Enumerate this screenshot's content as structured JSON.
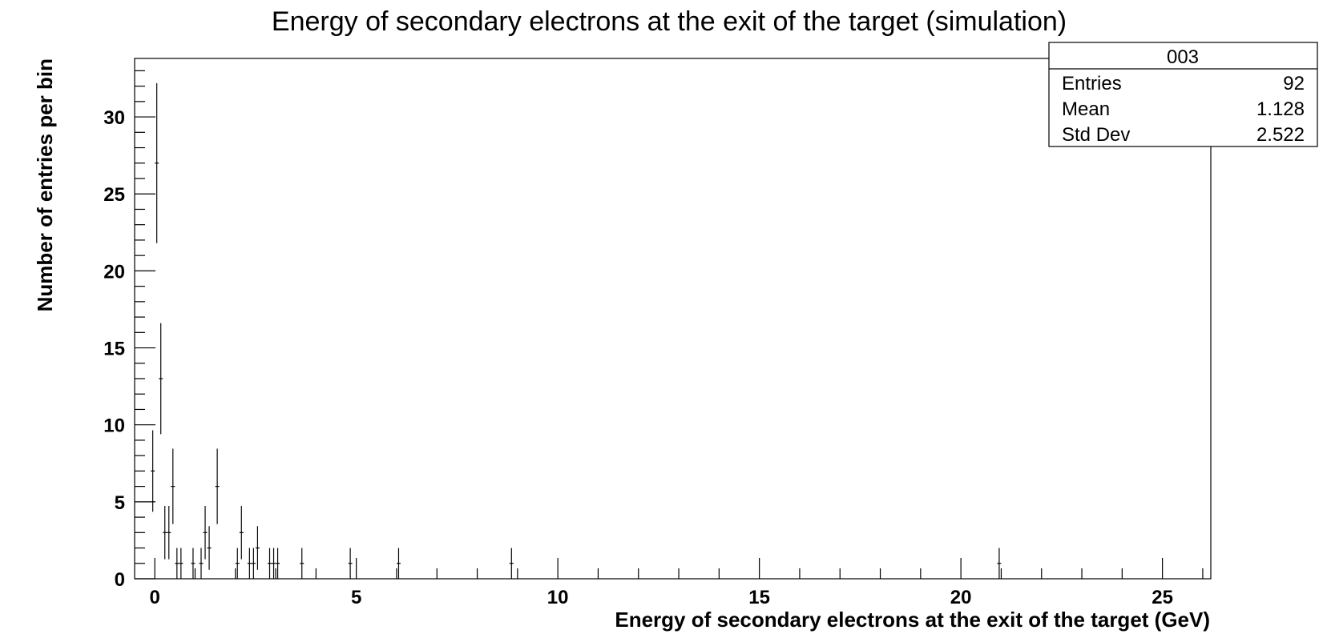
{
  "chart_data": {
    "type": "scatter",
    "title": "Energy of secondary electrons at the exit of the target (simulation)",
    "xlabel": "Energy of secondary electrons at the exit of the target (GeV)",
    "ylabel": "Number of entries per bin",
    "xlim": [
      -0.5,
      26.2
    ],
    "ylim": [
      0,
      33.8
    ],
    "x_ticks": [
      0,
      5,
      10,
      15,
      20,
      25
    ],
    "y_ticks": [
      0,
      5,
      10,
      15,
      20,
      25,
      30
    ],
    "grid": false,
    "stats_box": {
      "title": "003",
      "rows": [
        {
          "label": "Entries",
          "value": "92"
        },
        {
          "label": "Mean",
          "value": "1.128"
        },
        {
          "label": "Std Dev",
          "value": "2.522"
        }
      ],
      "placement": "top-right"
    },
    "bin_width": 0.1,
    "points": [
      {
        "x": -0.05,
        "y": 7
      },
      {
        "x": 0.05,
        "y": 27
      },
      {
        "x": 0.15,
        "y": 13
      },
      {
        "x": 0.25,
        "y": 3
      },
      {
        "x": 0.35,
        "y": 3
      },
      {
        "x": 0.45,
        "y": 6
      },
      {
        "x": 0.55,
        "y": 1
      },
      {
        "x": 0.65,
        "y": 1
      },
      {
        "x": 0.95,
        "y": 1
      },
      {
        "x": 1.15,
        "y": 1
      },
      {
        "x": 1.25,
        "y": 3
      },
      {
        "x": 1.35,
        "y": 2
      },
      {
        "x": 1.55,
        "y": 6
      },
      {
        "x": 2.05,
        "y": 1
      },
      {
        "x": 2.15,
        "y": 3
      },
      {
        "x": 2.35,
        "y": 1
      },
      {
        "x": 2.45,
        "y": 1
      },
      {
        "x": 2.55,
        "y": 2
      },
      {
        "x": 2.85,
        "y": 1
      },
      {
        "x": 2.95,
        "y": 1
      },
      {
        "x": 3.05,
        "y": 1
      },
      {
        "x": 3.65,
        "y": 1
      },
      {
        "x": 4.85,
        "y": 1
      },
      {
        "x": 6.05,
        "y": 1
      },
      {
        "x": 8.85,
        "y": 1
      },
      {
        "x": 20.95,
        "y": 1
      }
    ]
  }
}
